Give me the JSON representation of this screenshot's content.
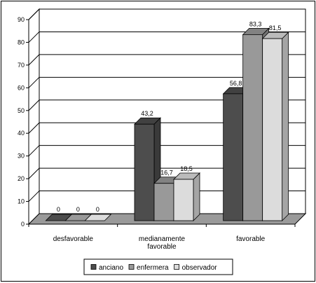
{
  "chart_data": {
    "type": "bar",
    "title": "",
    "xlabel": "",
    "ylabel": "",
    "categories": [
      [
        "desfavorable"
      ],
      [
        "medianamente",
        "favorable"
      ],
      [
        "favorable"
      ]
    ],
    "series": [
      {
        "name": "anciano",
        "values": [
          0,
          43.2,
          56.8
        ],
        "labels": [
          "0",
          "43,2",
          "56,8"
        ],
        "color": "#4d4d4d"
      },
      {
        "name": "enfermera",
        "values": [
          0,
          16.7,
          83.3
        ],
        "labels": [
          "0",
          "16,7",
          "83,3"
        ],
        "color": "#999999"
      },
      {
        "name": "observador",
        "values": [
          0,
          18.5,
          81.5
        ],
        "labels": [
          "0",
          "18,5",
          "81,5"
        ],
        "color": "#dcdcdc"
      }
    ],
    "ylim": [
      0,
      90
    ],
    "yticks": [
      0,
      10,
      20,
      30,
      40,
      50,
      60,
      70,
      80,
      90
    ],
    "grid": true,
    "three_d": true,
    "legend": "bottom"
  }
}
